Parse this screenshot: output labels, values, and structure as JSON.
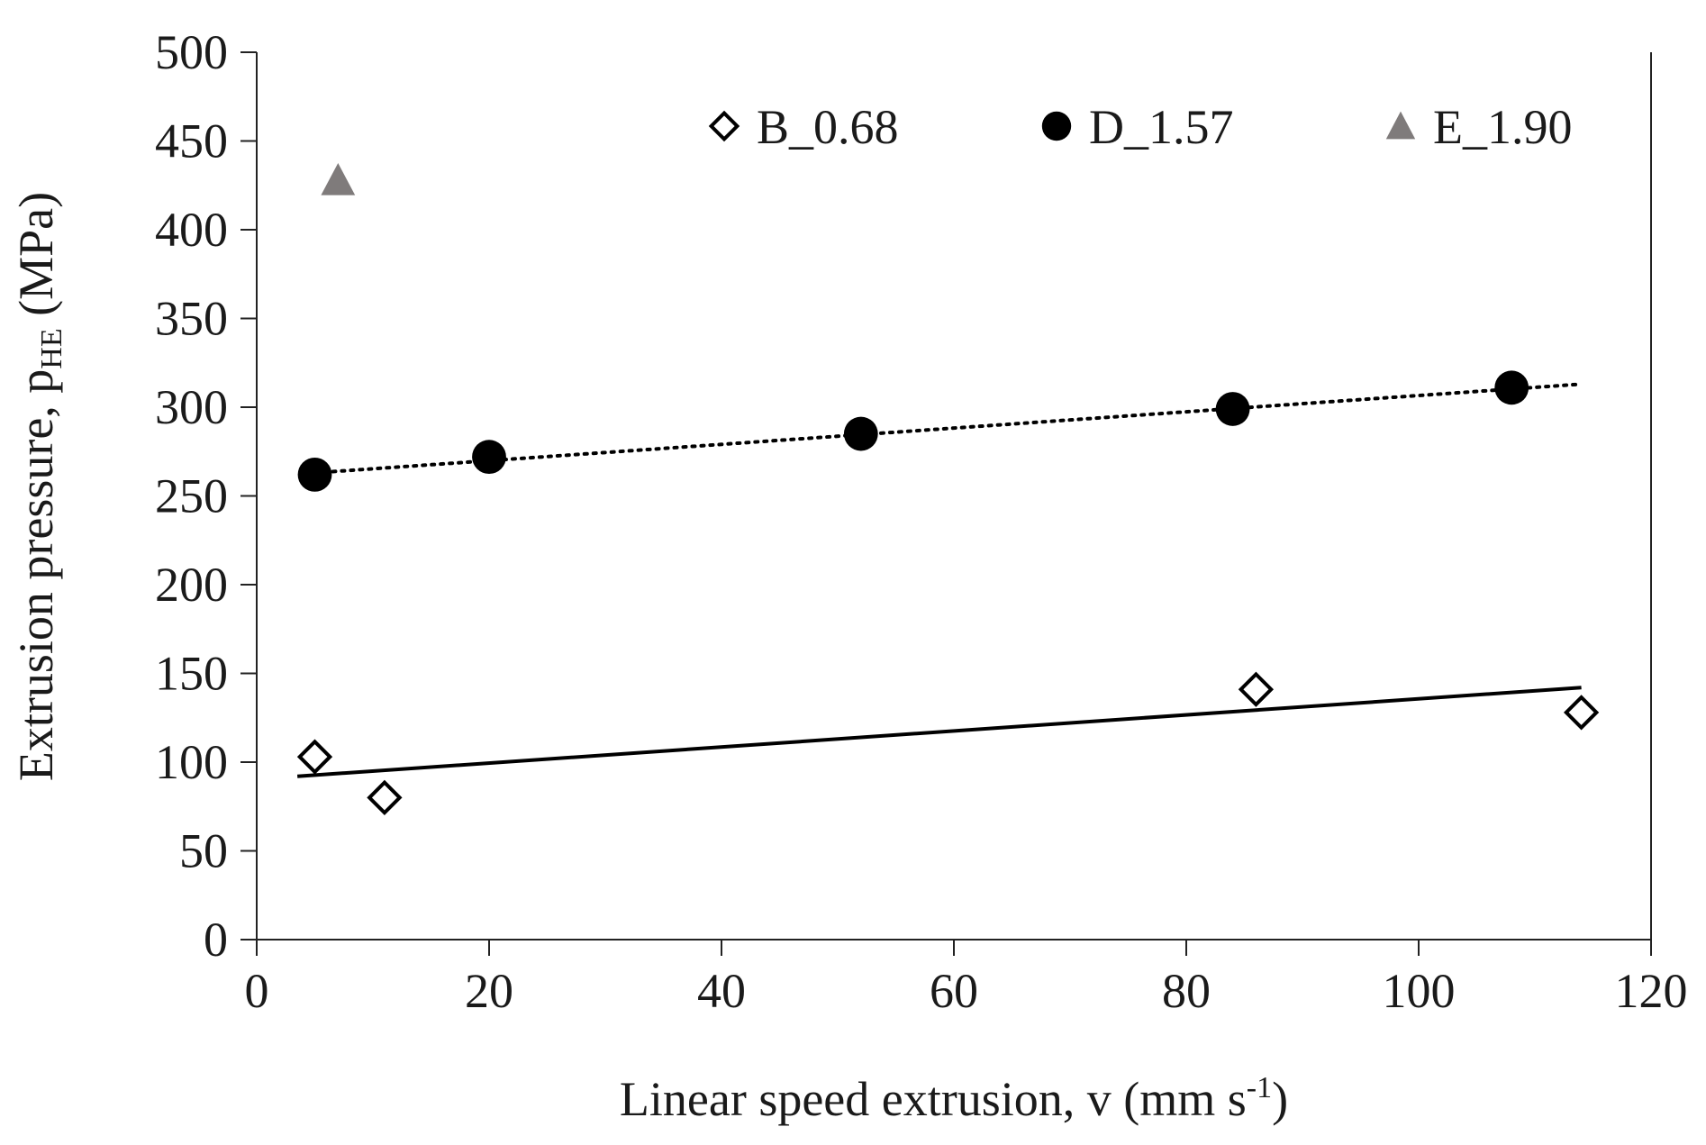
{
  "chart_data": {
    "type": "scatter",
    "xlabel": {
      "main": "Linear speed extrusion, v (mm s",
      "superscript": "-1",
      "close": ")"
    },
    "ylabel": {
      "main": "Extrusion pressure,  p",
      "subscript": "HE",
      "unit": " (MPa)"
    },
    "xlim": [
      0,
      120
    ],
    "ylim": [
      0,
      500
    ],
    "x_ticks": [
      0,
      20,
      40,
      60,
      80,
      100,
      120
    ],
    "y_ticks": [
      0,
      50,
      100,
      150,
      200,
      250,
      300,
      350,
      400,
      450,
      500
    ],
    "grid": false,
    "legend_position": "top",
    "series": [
      {
        "name": "B_0.68",
        "marker": "diamond-open",
        "color": "#000000",
        "x": [
          5,
          11,
          86,
          114
        ],
        "y": [
          103,
          80,
          141,
          128
        ],
        "trendline": {
          "style": "solid",
          "x": [
            3.5,
            114
          ],
          "y": [
            92,
            142
          ]
        }
      },
      {
        "name": "D_1.57",
        "marker": "circle-filled",
        "color": "#000000",
        "x": [
          5,
          20,
          52,
          84,
          108
        ],
        "y": [
          262,
          272,
          285,
          299,
          311
        ],
        "trendline": {
          "style": "dotted",
          "x": [
            5,
            114
          ],
          "y": [
            263,
            313
          ]
        }
      },
      {
        "name": "E_1.90",
        "marker": "triangle-filled",
        "color": "#7f7b7b",
        "x": [
          7
        ],
        "y": [
          428
        ]
      }
    ]
  }
}
